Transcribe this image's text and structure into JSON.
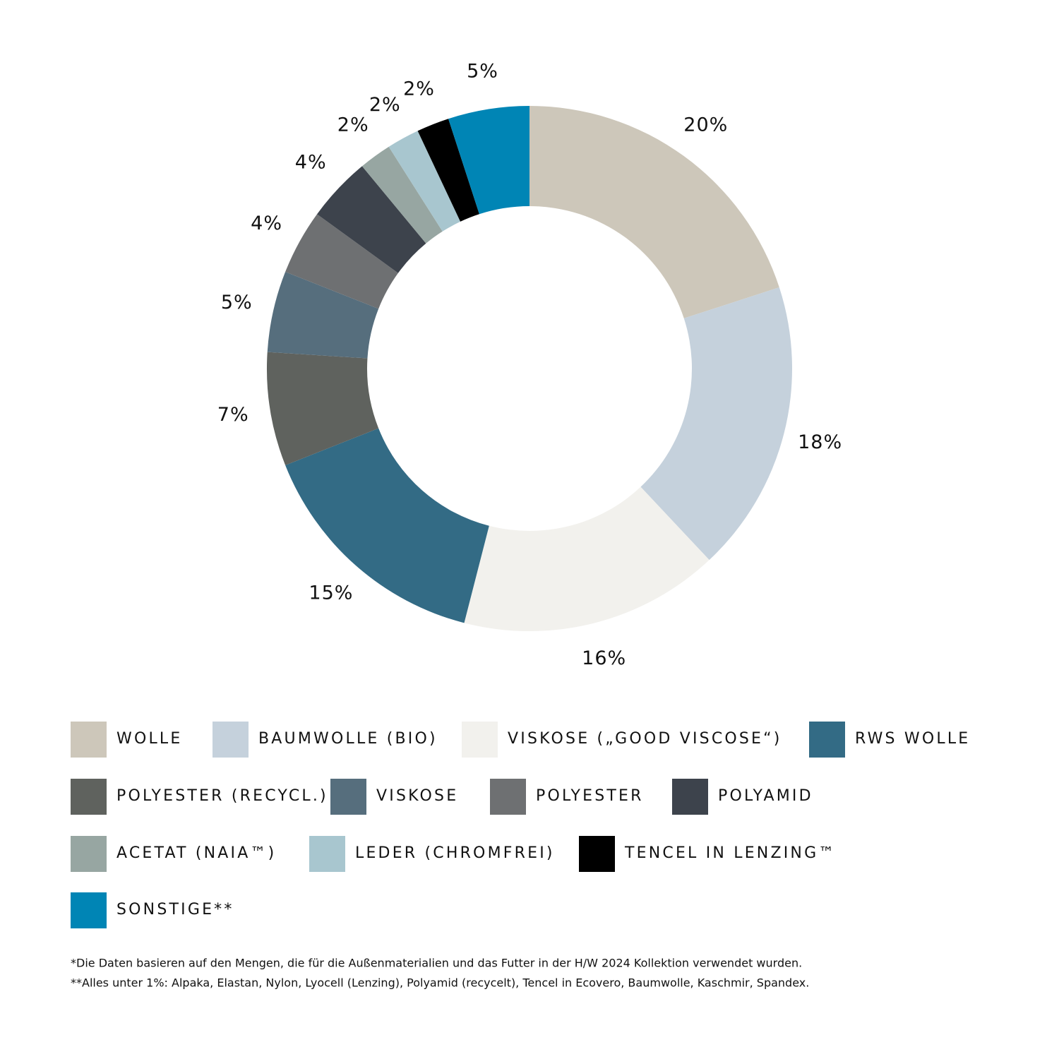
{
  "chart_data": {
    "type": "donut",
    "categories": [
      "WOLLE",
      "BAUMWOLLE (BIO)",
      "VISKOSE („GOOD VISCOSE“)",
      "RWS WOLLE",
      "POLYESTER (RECYCL.)",
      "VISKOSE",
      "POLYESTER",
      "POLYAMID",
      "ACETAT (NAIA™)",
      "LEDER (CHROMFREI)",
      "TENCEL IN LENZING™",
      "SONSTIGE**"
    ],
    "values": [
      20,
      18,
      16,
      15,
      7,
      5,
      4,
      4,
      2,
      2,
      2,
      5
    ],
    "value_labels": [
      "20%",
      "18%",
      "16%",
      "15%",
      "7%",
      "5%",
      "4%",
      "4%",
      "2%",
      "2%",
      "2%",
      "5%"
    ],
    "colors": [
      "#cdc7ba",
      "#c5d1dc",
      "#f2f1ed",
      "#336b85",
      "#5f625e",
      "#566e7d",
      "#6e7072",
      "#3d434c",
      "#97a6a2",
      "#a8c6cf",
      "#000000",
      "#0085b5"
    ]
  },
  "notes": [
    "*Die Daten basieren auf den Mengen, die für die Außenmaterialien und das Futter in der H/W 2024 Kollektion verwendet wurden.",
    "**Alles unter 1%: Alpaka, Elastan, Nylon, Lyocell (Lenzing), Polyamid (recycelt), Tencel in Ecovero, Baumwolle, Kaschmir, Spandex."
  ]
}
